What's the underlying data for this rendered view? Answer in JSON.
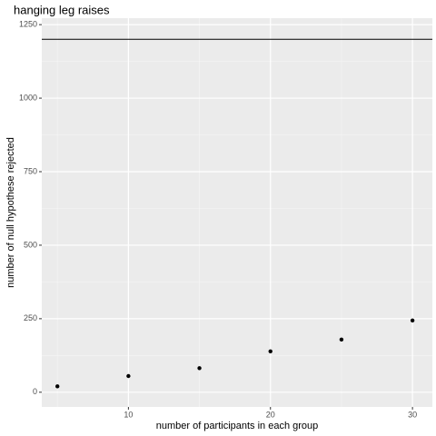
{
  "chart_data": {
    "type": "scatter",
    "title": "hanging leg raises",
    "x_label": "number of participants in each group",
    "y_label": "number of null hypothese rejected",
    "x": [
      5,
      10,
      15,
      20,
      25,
      30
    ],
    "values": [
      20,
      55,
      82,
      139,
      179,
      244
    ],
    "color": "#000000",
    "hline": 1200,
    "xlim": [
      3.9,
      31.4
    ],
    "xticks": [
      10,
      20,
      30
    ],
    "ylim": [
      -50,
      1272
    ],
    "yticks": [
      0,
      250,
      500,
      750,
      1000,
      1250
    ],
    "grid": true
  }
}
